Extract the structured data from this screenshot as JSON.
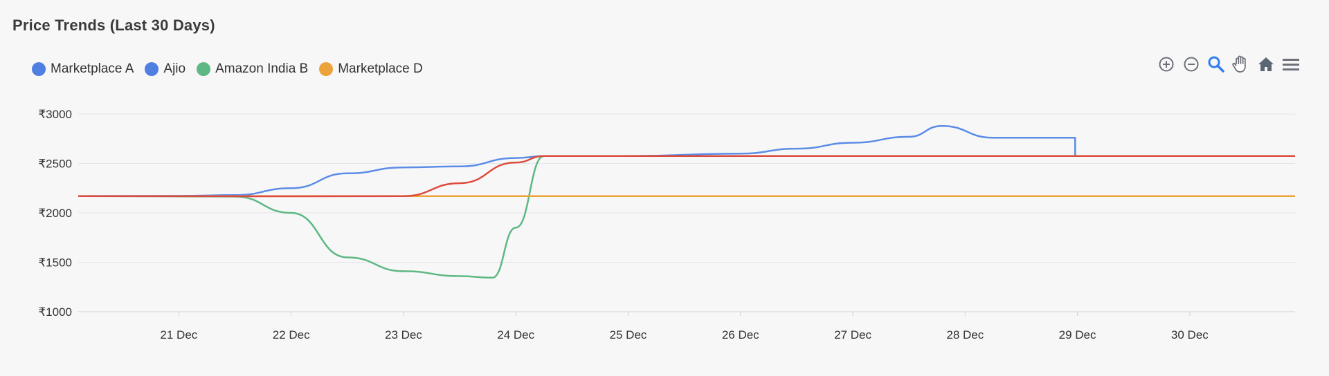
{
  "title": "Price Trends (Last 30 Days)",
  "legend": [
    {
      "label": "Marketplace A",
      "color": "#4f7fe0"
    },
    {
      "label": "Ajio",
      "color": "#4f7fe0"
    },
    {
      "label": "Amazon India B",
      "color": "#5db883"
    },
    {
      "label": "Marketplace D",
      "color": "#eba33a"
    }
  ],
  "toolbar": [
    "zoom-in-icon",
    "zoom-out-icon",
    "zoom-selection-icon",
    "pan-hand-icon",
    "home-reset-icon",
    "menu-icon"
  ],
  "chart_data": {
    "type": "line",
    "title": "Price Trends (Last 30 Days)",
    "x_ticks": [
      "21 Dec",
      "22 Dec",
      "23 Dec",
      "24 Dec",
      "25 Dec",
      "26 Dec",
      "27 Dec",
      "28 Dec",
      "29 Dec",
      "30 Dec"
    ],
    "y_ticks": [
      "₹1000",
      "₹1500",
      "₹2000",
      "₹2500",
      "₹3000"
    ],
    "ylim": [
      1000,
      3000
    ],
    "xlim": [
      "20 Dec 02:30",
      "30 Dec 22:30"
    ],
    "grid": true,
    "legend_position": "top-left",
    "series": [
      {
        "name": "Ajio",
        "color": "#5b8ce6",
        "points": [
          [
            "20 Dec 02:30",
            2170
          ],
          [
            "21 Dec 00:00",
            2172
          ],
          [
            "21 Dec 12:00",
            2180
          ],
          [
            "22 Dec 00:00",
            2250
          ],
          [
            "22 Dec 12:00",
            2400
          ],
          [
            "23 Dec 00:00",
            2460
          ],
          [
            "23 Dec 12:00",
            2470
          ],
          [
            "24 Dec 00:00",
            2555
          ],
          [
            "24 Dec 06:00",
            2575
          ],
          [
            "25 Dec 00:00",
            2575
          ],
          [
            "26 Dec 00:00",
            2600
          ],
          [
            "26 Dec 12:00",
            2650
          ],
          [
            "27 Dec 00:00",
            2710
          ],
          [
            "27 Dec 12:00",
            2770
          ],
          [
            "27 Dec 19:00",
            2880
          ],
          [
            "28 Dec 06:00",
            2760
          ],
          [
            "28 Dec 12:00",
            2760
          ],
          [
            "28 Dec 23:30",
            2760
          ],
          [
            "28 Dec 23:31",
            2575
          ],
          [
            "30 Dec 22:30",
            2575
          ]
        ]
      },
      {
        "name": "Amazon India B",
        "color": "#5db883",
        "points": [
          [
            "20 Dec 02:30",
            2170
          ],
          [
            "21 Dec 12:00",
            2165
          ],
          [
            "22 Dec 00:00",
            2000
          ],
          [
            "22 Dec 12:00",
            1550
          ],
          [
            "23 Dec 00:00",
            1410
          ],
          [
            "23 Dec 12:00",
            1360
          ],
          [
            "23 Dec 19:00",
            1345
          ],
          [
            "24 Dec 00:00",
            1850
          ],
          [
            "24 Dec 06:00",
            2575
          ],
          [
            "25 Dec 00:00",
            2575
          ],
          [
            "30 Dec 22:30",
            2575
          ]
        ]
      },
      {
        "name": "Marketplace D",
        "color": "#eba33a",
        "points": [
          [
            "20 Dec 02:30",
            2170
          ],
          [
            "30 Dec 22:30",
            2170
          ]
        ]
      },
      {
        "name": "",
        "color": "#dd4b3c",
        "points": [
          [
            "20 Dec 02:30",
            2170
          ],
          [
            "22 Dec 00:00",
            2168
          ],
          [
            "23 Dec 00:00",
            2170
          ],
          [
            "23 Dec 12:00",
            2300
          ],
          [
            "24 Dec 00:00",
            2510
          ],
          [
            "24 Dec 06:00",
            2575
          ],
          [
            "30 Dec 22:30",
            2575
          ]
        ]
      }
    ]
  }
}
